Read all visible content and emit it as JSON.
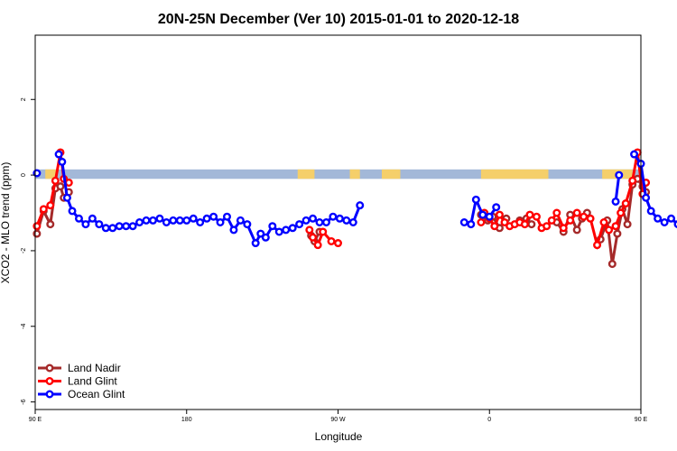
{
  "chart_data": {
    "type": "line",
    "title": "20N-25N December (Ver 10)   2015-01-01 to 2020-12-18",
    "xlabel": "Longitude",
    "ylabel": "XCO2 - MLO trend (ppm)",
    "xlim": [
      90,
      450
    ],
    "ylim": [
      -6.2,
      3.7
    ],
    "x_ticks": [
      {
        "value": 90,
        "label": "90 E"
      },
      {
        "value": 180,
        "label": "180"
      },
      {
        "value": 270,
        "label": "90 W"
      },
      {
        "value": 360,
        "label": "0"
      },
      {
        "value": 450,
        "label": "90 E"
      },
      {
        "value": 540,
        "label": "180"
      }
    ],
    "y_ticks": [
      {
        "value": 2,
        "label": "2"
      },
      {
        "value": 0,
        "label": "0"
      },
      {
        "value": -2,
        "label": "-2"
      },
      {
        "value": -4,
        "label": "-4"
      },
      {
        "value": -6,
        "label": "-6"
      }
    ],
    "grid": false,
    "legend_position": "bottom-left",
    "background_band": {
      "y_range": [
        -0.1,
        0.15
      ],
      "ocean_color": "#a3b8d8",
      "land_color": "#f5cf6a",
      "land_x_ranges": [
        [
          96,
          103
        ],
        [
          246,
          256
        ],
        [
          277,
          283
        ],
        [
          296,
          307
        ],
        [
          355,
          395
        ],
        [
          427,
          445
        ],
        [
          453,
          460
        ],
        [
          466,
          472
        ],
        [
          539,
          547
        ]
      ]
    },
    "series": [
      {
        "name": "Land Nadir",
        "color": "#a52a2a",
        "segments": [
          [
            [
              91,
              -1.55
            ],
            [
              95,
              -0.95
            ],
            [
              99,
              -1.3
            ],
            [
              102,
              -0.35
            ],
            [
              105,
              -0.3
            ],
            [
              107,
              -0.6
            ],
            [
              110,
              -0.45
            ]
          ],
          [
            [
              254,
              -1.6
            ],
            [
              256,
              -1.75
            ],
            [
              259,
              -1.5
            ]
          ],
          [
            [
              355,
              -1.05
            ],
            [
              359,
              -1.2
            ],
            [
              362,
              -1.1
            ],
            [
              366,
              -1.4
            ],
            [
              370,
              -1.15
            ]
          ],
          [
            [
              378,
              -1.2
            ],
            [
              382,
              -1.15
            ],
            [
              385,
              -1.3
            ]
          ],
          [
            [
              400,
              -1.25
            ],
            [
              404,
              -1.5
            ],
            [
              408,
              -1.05
            ],
            [
              412,
              -1.45
            ],
            [
              415,
              -1.15
            ],
            [
              418,
              -1.0
            ]
          ],
          [
            [
              426,
              -1.7
            ],
            [
              430,
              -1.2
            ],
            [
              433,
              -2.35
            ],
            [
              436,
              -1.55
            ],
            [
              439,
              -0.9
            ],
            [
              442,
              -1.3
            ],
            [
              445,
              -0.25
            ],
            [
              448,
              -0.1
            ],
            [
              451,
              -0.3
            ],
            [
              453,
              -0.45
            ]
          ]
        ]
      },
      {
        "name": "Land Glint",
        "color": "#ff0000",
        "segments": [
          [
            [
              91,
              -1.35
            ],
            [
              95,
              -0.9
            ],
            [
              99,
              -0.8
            ],
            [
              102,
              -0.15
            ],
            [
              105,
              0.6
            ],
            [
              107,
              -0.1
            ],
            [
              110,
              -0.2
            ]
          ],
          [
            [
              253,
              -1.45
            ],
            [
              255,
              -1.65
            ],
            [
              258,
              -1.85
            ],
            [
              261,
              -1.5
            ],
            [
              266,
              -1.75
            ],
            [
              270,
              -1.8
            ]
          ],
          [
            [
              355,
              -1.25
            ],
            [
              357,
              -1.0
            ],
            [
              360,
              -1.15
            ],
            [
              363,
              -1.35
            ],
            [
              366,
              -1.05
            ],
            [
              369,
              -1.25
            ],
            [
              372,
              -1.35
            ],
            [
              375,
              -1.3
            ],
            [
              378,
              -1.25
            ],
            [
              381,
              -1.3
            ],
            [
              384,
              -1.05
            ],
            [
              388,
              -1.1
            ],
            [
              391,
              -1.4
            ],
            [
              394,
              -1.35
            ],
            [
              397,
              -1.2
            ],
            [
              400,
              -1.0
            ],
            [
              404,
              -1.4
            ],
            [
              408,
              -1.2
            ],
            [
              412,
              -1.0
            ],
            [
              416,
              -1.1
            ],
            [
              420,
              -1.15
            ],
            [
              424,
              -1.85
            ],
            [
              428,
              -1.25
            ],
            [
              431,
              -1.45
            ],
            [
              435,
              -1.35
            ],
            [
              438,
              -1.0
            ],
            [
              441,
              -0.75
            ],
            [
              445,
              -0.15
            ],
            [
              448,
              0.6
            ],
            [
              451,
              -0.5
            ],
            [
              453,
              -0.2
            ]
          ]
        ]
      },
      {
        "name": "Ocean Glint",
        "color": "#0000ff",
        "segments": [
          [
            [
              91,
              0.05
            ]
          ],
          [
            [
              104,
              0.55
            ],
            [
              106,
              0.35
            ],
            [
              109,
              -0.6
            ],
            [
              112,
              -0.95
            ],
            [
              116,
              -1.15
            ],
            [
              120,
              -1.3
            ],
            [
              124,
              -1.15
            ],
            [
              128,
              -1.3
            ],
            [
              132,
              -1.4
            ],
            [
              136,
              -1.4
            ],
            [
              140,
              -1.35
            ],
            [
              144,
              -1.35
            ],
            [
              148,
              -1.35
            ],
            [
              152,
              -1.25
            ],
            [
              156,
              -1.2
            ],
            [
              160,
              -1.2
            ],
            [
              164,
              -1.15
            ],
            [
              168,
              -1.25
            ],
            [
              172,
              -1.2
            ],
            [
              176,
              -1.2
            ],
            [
              180,
              -1.2
            ],
            [
              184,
              -1.15
            ],
            [
              188,
              -1.25
            ],
            [
              192,
              -1.15
            ],
            [
              196,
              -1.1
            ],
            [
              200,
              -1.25
            ],
            [
              204,
              -1.1
            ],
            [
              208,
              -1.45
            ],
            [
              212,
              -1.2
            ],
            [
              216,
              -1.3
            ],
            [
              221,
              -1.8
            ],
            [
              224,
              -1.55
            ],
            [
              227,
              -1.65
            ],
            [
              231,
              -1.35
            ],
            [
              235,
              -1.5
            ],
            [
              239,
              -1.45
            ],
            [
              243,
              -1.4
            ],
            [
              247,
              -1.3
            ],
            [
              251,
              -1.2
            ],
            [
              255,
              -1.15
            ],
            [
              259,
              -1.25
            ],
            [
              263,
              -1.25
            ],
            [
              267,
              -1.1
            ],
            [
              271,
              -1.15
            ],
            [
              275,
              -1.2
            ],
            [
              279,
              -1.25
            ],
            [
              283,
              -0.8
            ]
          ],
          [
            [
              345,
              -1.25
            ],
            [
              349,
              -1.3
            ],
            [
              352,
              -0.65
            ],
            [
              356,
              -1.05
            ],
            [
              360,
              -1.1
            ],
            [
              364,
              -0.85
            ]
          ],
          [
            [
              435,
              -0.7
            ],
            [
              437,
              0.0
            ]
          ],
          [
            [
              446,
              0.55
            ],
            [
              450,
              0.3
            ],
            [
              453,
              -0.6
            ],
            [
              456,
              -0.95
            ],
            [
              460,
              -1.15
            ],
            [
              464,
              -1.25
            ],
            [
              468,
              -1.15
            ],
            [
              472,
              -1.3
            ],
            [
              476,
              -1.4
            ],
            [
              480,
              -1.4
            ],
            [
              484,
              -1.35
            ],
            [
              488,
              -1.35
            ],
            [
              492,
              -1.35
            ],
            [
              496,
              -1.25
            ]
          ]
        ]
      }
    ]
  }
}
